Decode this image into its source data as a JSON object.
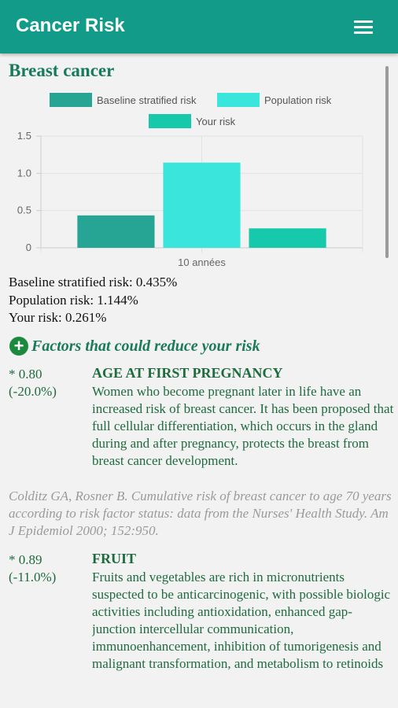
{
  "app": {
    "title": "Cancer Risk",
    "menu_icon": "hamburger-menu-icon",
    "accent": "#129b88"
  },
  "page": {
    "heading": "Breast cancer"
  },
  "chart_data": {
    "type": "bar",
    "categories": [
      "10 années"
    ],
    "series": [
      {
        "name": "Baseline stratified risk",
        "values": [
          0.435
        ],
        "color": "#26a594"
      },
      {
        "name": "Population risk",
        "values": [
          1.144
        ],
        "color": "#3ae6dc"
      },
      {
        "name": "Your risk",
        "values": [
          0.261
        ],
        "color": "#16c9aa"
      }
    ],
    "ylim": [
      0,
      1.5
    ],
    "yticks": [
      "0",
      "0.5",
      "1.0",
      "1.5"
    ],
    "grid": true,
    "legend": "top"
  },
  "stats": {
    "baseline": "Baseline stratified risk: 0.435%",
    "population": "Population risk: 1.144%",
    "your": "Your risk: 0.261%"
  },
  "factors_section": {
    "heading": "Factors that could reduce your risk",
    "icon": "plus-circle-icon"
  },
  "factors": [
    {
      "multiplier": "* 0.80",
      "change": "(-20.0%)",
      "title": "AGE AT FIRST PREGNANCY",
      "description": "Women who become pregnant later in life have an increased risk of breast cancer. It has been proposed that full cellular differentiation, which occurs in the gland during and after pregnancy, protects the breast from breast cancer development.",
      "reference": "Colditz GA, Rosner B. Cumulative risk of breast cancer to age 70 years according to risk factor status: data from the Nurses' Health Study. Am J Epidemiol 2000; 152:950."
    },
    {
      "multiplier": "* 0.89",
      "change": "(-11.0%)",
      "title": "FRUIT",
      "description": "Fruits and vegetables are rich in micronutrients suspected to be anticarcinogenic, with possible biologic activities including antioxidation, enhanced gap-junction intercellular communication, immunoenhancement, inhibition of tumorigenesis and malignant transformation, and metabolism to retinoids"
    }
  ]
}
